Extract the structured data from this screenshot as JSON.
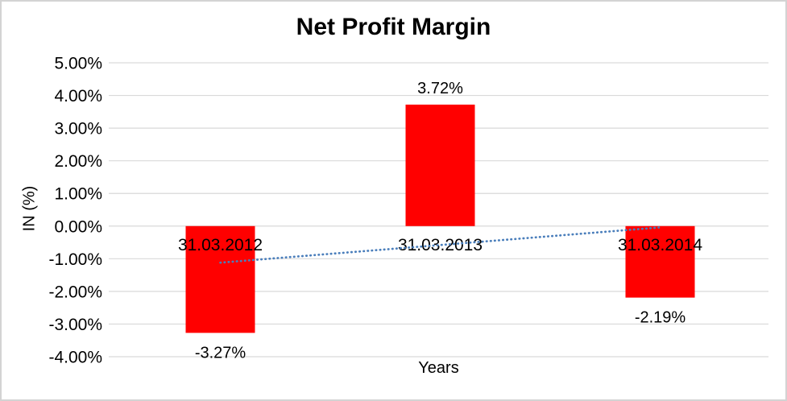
{
  "chart": {
    "title": "Net Profit Margin",
    "x_axis_title": "Years",
    "y_axis_title": "IN (%)"
  },
  "chart_data": {
    "type": "bar",
    "title": "Net Profit Margin",
    "xlabel": "Years",
    "ylabel": "IN (%)",
    "categories": [
      "31.03.2012",
      "31.03.2013",
      "31.03.2014"
    ],
    "series": [
      {
        "name": "Net Profit Margin",
        "values": [
          -3.27,
          3.72,
          -2.19
        ]
      }
    ],
    "data_labels": [
      "-3.27%",
      "3.72%",
      "-2.19%"
    ],
    "ylim": [
      -4,
      5
    ],
    "ytick_step": 1,
    "ytick_labels": [
      "5.00%",
      "4.00%",
      "3.00%",
      "2.00%",
      "1.00%",
      "0.00%",
      "-1.00%",
      "-2.00%",
      "-3.00%",
      "-4.00%"
    ],
    "grid": true,
    "legend": "none",
    "bar_color": "#FF0000",
    "gridline_color": "#D9D9D9",
    "text_color": "#000000",
    "trendline": {
      "type": "linear",
      "style": "dotted",
      "color": "#4A7EBB",
      "values": [
        -1.12,
        -0.58,
        -0.04
      ]
    }
  }
}
